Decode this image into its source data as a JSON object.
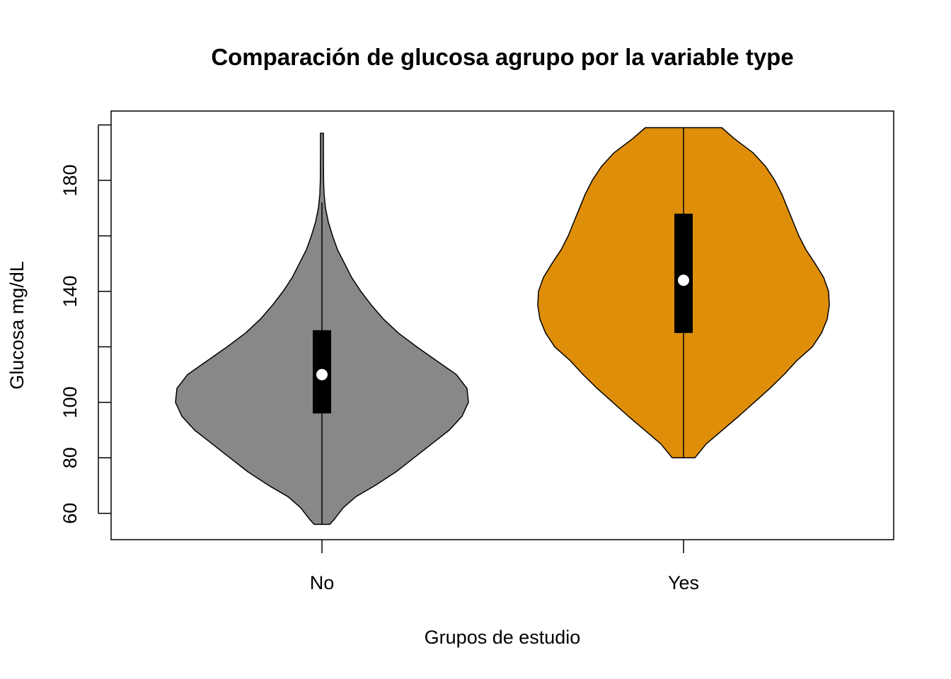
{
  "chart_data": {
    "type": "violin",
    "title": "Comparación de glucosa agrupo por la variable type",
    "xlabel": "Grupos de estudio",
    "ylabel": "Glucosa mg/dL",
    "ylim": [
      50.5,
      205
    ],
    "yticks": [
      60,
      80,
      100,
      140,
      180
    ],
    "ytick_labels": [
      "60",
      "80",
      "100",
      "140",
      "180"
    ],
    "yticks_unlabeled": [
      120,
      160,
      200
    ],
    "categories": [
      "No",
      "Yes"
    ],
    "colors": [
      "#888888",
      "#DF8E0A"
    ],
    "series": [
      {
        "name": "No",
        "min": 56,
        "max": 197,
        "whisker_low": 56,
        "whisker_high": 172,
        "q1": 96,
        "q3": 126,
        "median": 110,
        "density_profile": [
          [
            56,
            0.11
          ],
          [
            58,
            0.18
          ],
          [
            62,
            0.3
          ],
          [
            66,
            0.48
          ],
          [
            70,
            0.75
          ],
          [
            75,
            1.05
          ],
          [
            80,
            1.3
          ],
          [
            85,
            1.55
          ],
          [
            90,
            1.8
          ],
          [
            95,
            1.98
          ],
          [
            100,
            2.07
          ],
          [
            105,
            2.05
          ],
          [
            110,
            1.9
          ],
          [
            115,
            1.62
          ],
          [
            120,
            1.34
          ],
          [
            125,
            1.08
          ],
          [
            130,
            0.87
          ],
          [
            135,
            0.7
          ],
          [
            140,
            0.55
          ],
          [
            145,
            0.42
          ],
          [
            150,
            0.32
          ],
          [
            155,
            0.22
          ],
          [
            160,
            0.15
          ],
          [
            165,
            0.09
          ],
          [
            170,
            0.05
          ],
          [
            175,
            0.03
          ],
          [
            180,
            0.023
          ],
          [
            185,
            0.022
          ],
          [
            190,
            0.021
          ],
          [
            197,
            0.021
          ]
        ]
      },
      {
        "name": "Yes",
        "min": 80,
        "max": 199,
        "whisker_low": 80,
        "whisker_high": 199,
        "q1": 125,
        "q3": 168,
        "median": 144,
        "density_profile": [
          [
            80,
            0.16
          ],
          [
            85,
            0.32
          ],
          [
            90,
            0.55
          ],
          [
            95,
            0.78
          ],
          [
            100,
            1.0
          ],
          [
            105,
            1.22
          ],
          [
            110,
            1.42
          ],
          [
            115,
            1.6
          ],
          [
            120,
            1.82
          ],
          [
            125,
            1.95
          ],
          [
            130,
            2.03
          ],
          [
            135,
            2.06
          ],
          [
            140,
            2.05
          ],
          [
            145,
            1.98
          ],
          [
            150,
            1.86
          ],
          [
            155,
            1.73
          ],
          [
            160,
            1.63
          ],
          [
            165,
            1.55
          ],
          [
            170,
            1.47
          ],
          [
            175,
            1.39
          ],
          [
            180,
            1.29
          ],
          [
            185,
            1.16
          ],
          [
            190,
            0.98
          ],
          [
            195,
            0.72
          ],
          [
            199,
            0.54
          ]
        ]
      }
    ]
  }
}
